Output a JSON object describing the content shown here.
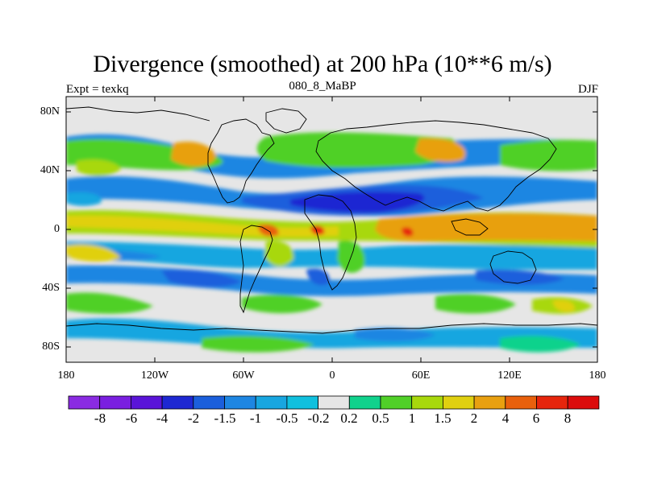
{
  "title": "Divergence (smoothed) at 200 hPa (10**6 m/s)",
  "subtitle_left": "Expt = texkq",
  "subtitle_center": "080_8_MaBP",
  "subtitle_right": "DJF",
  "y_ticks": [
    "80N",
    "40N",
    "0",
    "40S",
    "80S"
  ],
  "x_ticks": [
    "180",
    "120W",
    "60W",
    "0",
    "60E",
    "120E",
    "180"
  ],
  "colorbar": {
    "labels": [
      "-8",
      "-6",
      "-4",
      "-2",
      "-1.5",
      "-1",
      "-0.5",
      "-0.2",
      "0.2",
      "0.5",
      "1",
      "1.5",
      "2",
      "4",
      "6",
      "8"
    ],
    "colors": [
      "#8a2be2",
      "#7a1fe0",
      "#5a14d8",
      "#1e28d2",
      "#1b5fdc",
      "#1e86e2",
      "#18a6e0",
      "#10c0de",
      "#e6e6e6",
      "#10d28c",
      "#50d028",
      "#a8d80c",
      "#e0d010",
      "#e8a010",
      "#e8600c",
      "#e6250c",
      "#dc0c0c"
    ]
  },
  "palette": {
    "background": "#e6e6e6",
    "neg_weak": "#10c0de",
    "neg_mid": "#1e86e2",
    "neg_strong": "#1b5fdc",
    "neg_max": "#1e28d2",
    "pos_weak": "#10d28c",
    "pos_mid": "#50d028",
    "pos_strong": "#a8d80c",
    "pos_max": "#e8a010",
    "pos_peak": "#e6250c"
  }
}
